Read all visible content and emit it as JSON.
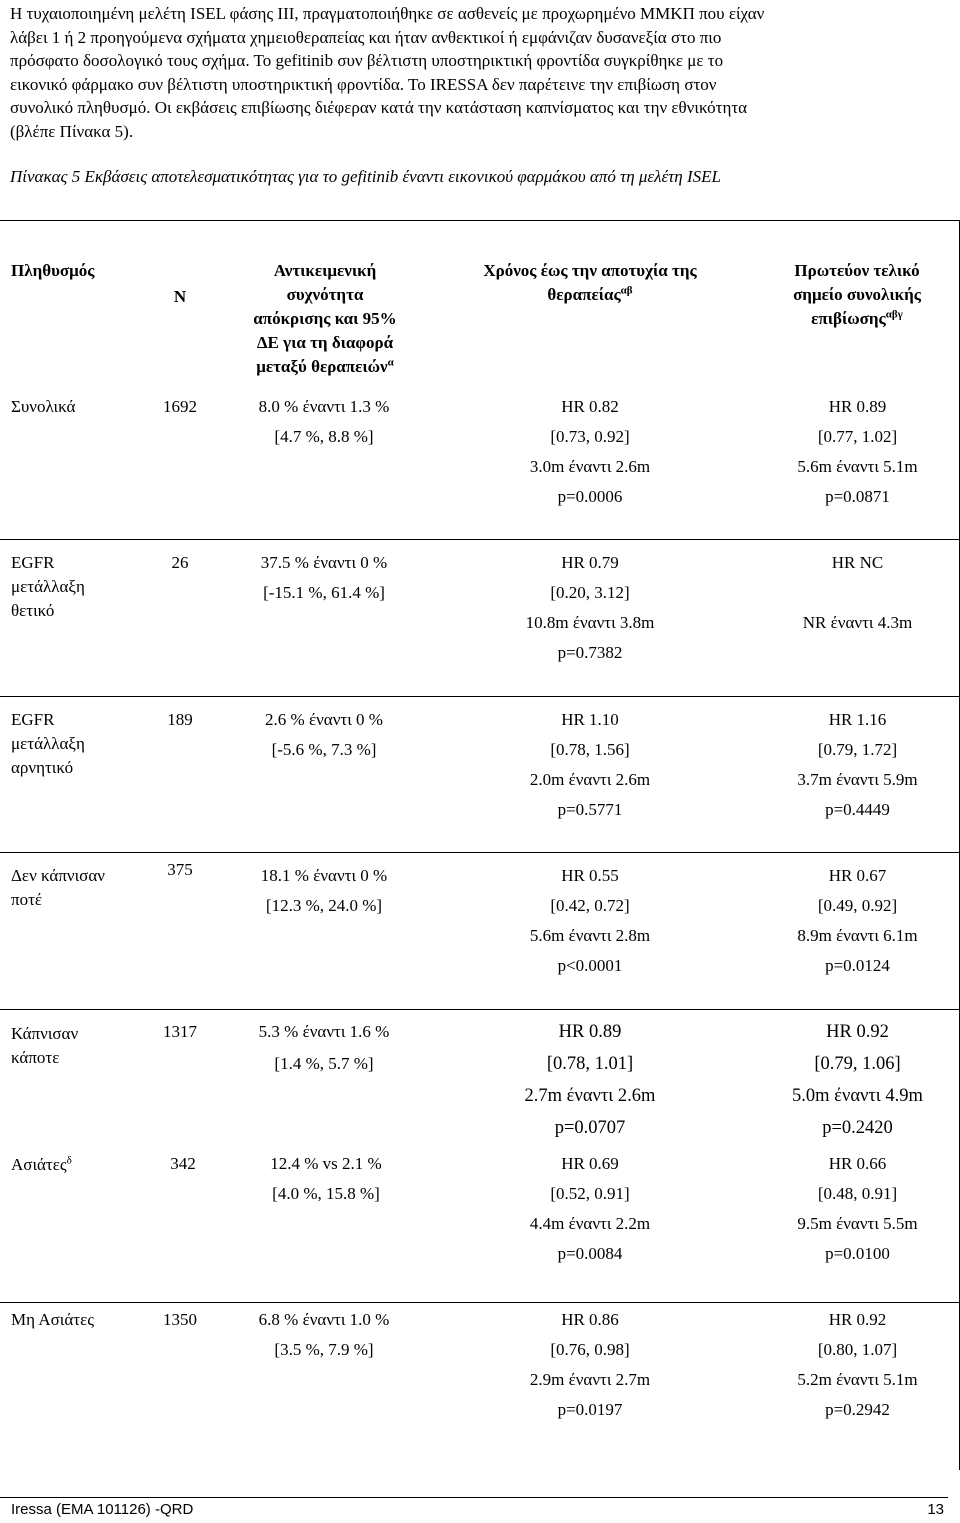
{
  "intro": {
    "lines": [
      "Η τυχαιοποιημένη μελέτη ISEL φάσης ΙΙΙ, πραγματοποιήθηκε σε ασθενείς με προχωρημένο ΜΜΚΠ που είχαν",
      "λάβει 1 ή 2 προηγούμενα σχήματα χημειοθεραπείας και ήταν ανθεκτικοί ή εμφάνιζαν δυσανεξία στο πιο",
      "πρόσφατο δοσολογικό τους σχήμα. Το gefitinib συν βέλτιστη υποστηρικτική φροντίδα συγκρίθηκε με το",
      "εικονικό φάρμακο συν βέλτιστη υποστηρικτική φροντίδα. Το IRESSA δεν παρέτεινε την επιβίωση στον",
      "συνολικό πληθυσμό. Οι εκβάσεις επιβίωσης διέφεραν κατά την κατάσταση καπνίσματος και την εθνικότητα",
      "(βλέπε Πίνακα 5)."
    ]
  },
  "table": {
    "caption": "Πίνακας 5 Εκβάσεις αποτελεσματικότητας για το gefitinib έναντι εικονικού φαρμάκου από τη μελέτη ISEL",
    "headers": {
      "population": "Πληθυσμός",
      "n": "N",
      "response": [
        "Αντικειμενική",
        "συχνότητα",
        "απόκρισης και 95%",
        "ΔΕ για τη διαφορά",
        "μεταξύ θεραπειών"
      ],
      "response_sup": "α",
      "ttf": [
        "Χρόνος έως την αποτυχία της",
        "θεραπείας"
      ],
      "ttf_sup": "αβ",
      "os": [
        "Πρωτεύον τελικό",
        "σημείο συνολικής",
        "επιβίωσης"
      ],
      "os_sup": "αβγ"
    },
    "rows": [
      {
        "population": [
          "Συνολικά"
        ],
        "n": "1692",
        "response": [
          "8.0 % έναντι 1.3 %",
          "[4.7 %, 8.8 %]"
        ],
        "ttf": [
          "HR 0.82",
          "[0.73, 0.92]",
          "3.0m έναντι 2.6m",
          "p=0.0006"
        ],
        "os": [
          "HR 0.89",
          "[0.77, 1.02]",
          "5.6m έναντι 5.1m",
          "p=0.0871"
        ]
      },
      {
        "population": [
          "EGFR",
          "μετάλλαξη",
          "θετικό"
        ],
        "n": "26",
        "response": [
          "37.5 % έναντι 0 %",
          "[-15.1 %, 61.4 %]"
        ],
        "ttf": [
          "HR 0.79",
          "[0.20, 3.12]",
          "10.8m έναντι 3.8m",
          "p=0.7382"
        ],
        "os": [
          "HR NC",
          "",
          "NR έναντι 4.3m",
          ""
        ]
      },
      {
        "population": [
          "EGFR",
          "μετάλλαξη",
          "αρνητικό"
        ],
        "n": "189",
        "response": [
          "2.6 % έναντι 0 %",
          "[-5.6 %, 7.3 %]"
        ],
        "ttf": [
          "HR 1.10",
          "[0.78, 1.56]",
          "2.0m έναντι 2.6m",
          "p=0.5771"
        ],
        "os": [
          "HR 1.16",
          "[0.79, 1.72]",
          "3.7m έναντι 5.9m",
          "p=0.4449"
        ]
      },
      {
        "population": [
          "Δεν κάπνισαν",
          "ποτέ"
        ],
        "n": "375",
        "response": [
          "18.1 % έναντι 0 %",
          "[12.3 %, 24.0 %]"
        ],
        "ttf": [
          "HR 0.55",
          "[0.42, 0.72]",
          "5.6m έναντι 2.8m",
          "p<0.0001"
        ],
        "os": [
          "HR 0.67",
          "[0.49, 0.92]",
          "8.9m έναντι 6.1m",
          "p=0.0124"
        ]
      },
      {
        "population": [
          "Κάπνισαν",
          "κάποτε"
        ],
        "n": "1317",
        "response": [
          "5.3 % έναντι 1.6 %",
          "[1.4 %, 5.7 %]"
        ],
        "ttf": [
          "HR 0.89",
          "[0.78, 1.01]",
          "2.7m έναντι 2.6m",
          "p=0.0707"
        ],
        "os": [
          "HR 0.92",
          "[0.79, 1.06]",
          "5.0m έναντι 4.9m",
          "p=0.2420"
        ]
      },
      {
        "population": [
          "Ασιάτες"
        ],
        "population_sup": "δ",
        "n": "342",
        "response": [
          "12.4 % vs 2.1 %",
          "[4.0 %, 15.8 %]"
        ],
        "ttf": [
          "HR 0.69",
          "[0.52, 0.91]",
          "4.4m έναντι 2.2m",
          "p=0.0084"
        ],
        "os": [
          "HR 0.66",
          "[0.48, 0.91]",
          "9.5m έναντι 5.5m",
          "p=0.0100"
        ]
      },
      {
        "population": [
          "Μη Ασιάτες"
        ],
        "n": "1350",
        "response": [
          "6.8 % έναντι 1.0 %",
          "[3.5 %, 7.9 %]"
        ],
        "ttf": [
          "HR 0.86",
          "[0.76, 0.98]",
          "2.9m έναντι 2.7m",
          "p=0.0197"
        ],
        "os": [
          "HR 0.92",
          "[0.80, 1.07]",
          "5.2m έναντι 5.1m",
          "p=0.2942"
        ]
      }
    ]
  },
  "footer": {
    "left": "Iressa (EMA 101126) -QRD",
    "right": "13"
  }
}
